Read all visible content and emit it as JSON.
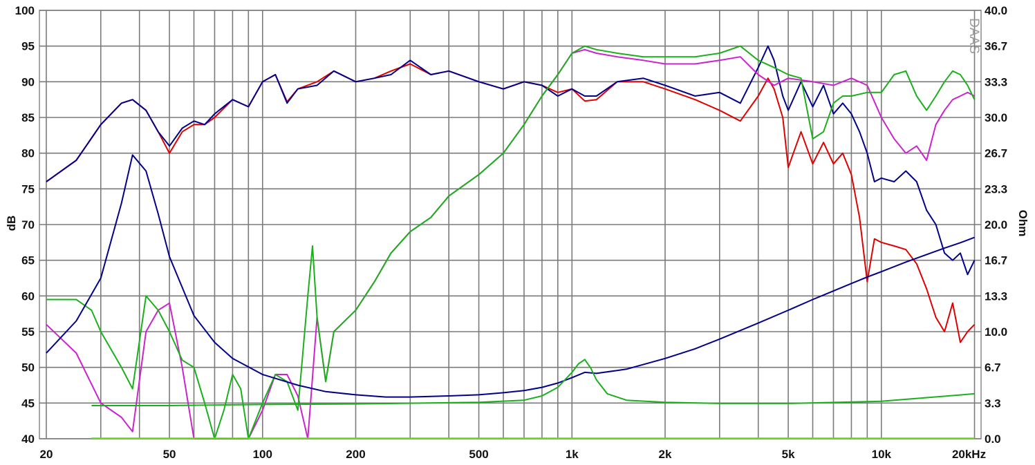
{
  "chart_data": {
    "type": "line",
    "title": "",
    "xlabel": "",
    "ylabel_left": "dB",
    "ylabel_right": "Ohm",
    "x_scale": "log",
    "xlim": [
      19,
      21000
    ],
    "ylim_left": [
      40,
      100
    ],
    "ylim_right": [
      0,
      40
    ],
    "grid": true,
    "watermark": "DAAS",
    "y_left_ticks": [
      "100",
      "95",
      "90",
      "85",
      "80",
      "75",
      "70",
      "65",
      "60",
      "55",
      "50",
      "45",
      "40"
    ],
    "y_right_ticks": [
      "40.0",
      "36.7",
      "33.3",
      "30.0",
      "26.7",
      "23.3",
      "20.0",
      "16.7",
      "13.3",
      "10.0",
      "6.7",
      "3.3",
      "0.0"
    ],
    "x_ticks": [
      {
        "label": "20",
        "value": 20
      },
      {
        "label": "50",
        "value": 50
      },
      {
        "label": "100",
        "value": 100
      },
      {
        "label": "200",
        "value": 200
      },
      {
        "label": "500",
        "value": 500
      },
      {
        "label": "1k",
        "value": 1000
      },
      {
        "label": "2k",
        "value": 2000
      },
      {
        "label": "5k",
        "value": 5000
      },
      {
        "label": "10k",
        "value": 10000
      },
      {
        "label": "20kHz",
        "value": 20000
      }
    ],
    "x_gridlines": [
      20,
      30,
      40,
      50,
      60,
      70,
      80,
      90,
      100,
      200,
      300,
      400,
      500,
      600,
      700,
      800,
      900,
      1000,
      2000,
      3000,
      4000,
      5000,
      6000,
      7000,
      8000,
      9000,
      10000,
      20000
    ],
    "series": [
      {
        "color": "#e00000",
        "axis": "left",
        "x": [
          20,
          25,
          30,
          35,
          38,
          42,
          46,
          50,
          55,
          60,
          65,
          70,
          80,
          90,
          100,
          110,
          120,
          130,
          150,
          170,
          200,
          230,
          260,
          300,
          350,
          400,
          500,
          600,
          700,
          800,
          900,
          1000,
          1100,
          1200,
          1400,
          1700,
          2000,
          2500,
          3000,
          3500,
          4000,
          4300,
          4500,
          4800,
          5000,
          5500,
          6000,
          6500,
          7000,
          7500,
          8000,
          8500,
          9000,
          9500,
          10000,
          11000,
          12000,
          13000,
          14000,
          15000,
          16000,
          17000,
          18000,
          19000,
          20000
        ],
        "values": [
          76,
          79,
          84,
          87,
          87.5,
          86,
          83,
          80,
          83,
          84,
          84,
          85,
          87.5,
          86.5,
          90,
          91,
          87.2,
          89,
          90,
          91.5,
          90,
          90.5,
          91.5,
          92.5,
          91,
          91.5,
          90,
          89,
          90,
          89.5,
          88.5,
          89,
          87.3,
          87.5,
          90,
          90,
          89,
          87.5,
          86,
          84.5,
          88,
          90.5,
          89,
          85,
          78,
          83,
          78.5,
          81.5,
          78.5,
          80,
          77,
          71,
          62,
          68,
          67.5,
          67,
          66.5,
          64.5,
          61,
          57,
          55,
          59,
          53.5,
          55,
          56
        ]
      },
      {
        "color": "#00008b",
        "axis": "left",
        "x": [
          20,
          25,
          30,
          35,
          38,
          42,
          46,
          50,
          55,
          60,
          65,
          70,
          80,
          90,
          100,
          110,
          120,
          130,
          150,
          170,
          200,
          230,
          260,
          300,
          350,
          400,
          500,
          600,
          700,
          800,
          900,
          1000,
          1100,
          1200,
          1400,
          1700,
          2000,
          2500,
          3000,
          3500,
          4000,
          4300,
          4500,
          4800,
          5000,
          5500,
          6000,
          6500,
          7000,
          7500,
          8000,
          8500,
          9000,
          9500,
          10000,
          11000,
          12000,
          13000,
          14000,
          15000,
          16000,
          17000,
          18000,
          19000,
          20000
        ],
        "values": [
          76,
          79,
          84,
          87,
          87.5,
          86,
          83,
          81,
          83.5,
          84.5,
          84,
          85.5,
          87.5,
          86.5,
          90,
          91,
          87,
          89,
          89.5,
          91.5,
          90,
          90.5,
          91,
          93,
          91,
          91.5,
          90,
          89,
          90,
          89.5,
          88,
          89,
          88,
          88,
          90,
          90.5,
          89.5,
          88,
          88.5,
          87,
          92,
          95,
          93,
          88,
          86,
          90,
          86.5,
          89.5,
          85.5,
          87,
          85.5,
          83,
          80,
          76,
          76.5,
          76,
          77.5,
          76,
          72,
          70,
          66,
          65,
          66,
          63,
          65
        ]
      },
      {
        "color": "#cc22cc",
        "axis": "left",
        "x": [
          20,
          25,
          30,
          35,
          38,
          42,
          46,
          50,
          55,
          60,
          65,
          70,
          80,
          85,
          90,
          100,
          110,
          120,
          130,
          140,
          150,
          160,
          170,
          200,
          230,
          260,
          300,
          350,
          400,
          500,
          600,
          700,
          800,
          900,
          1000,
          1100,
          1200,
          1400,
          1700,
          2000,
          2500,
          3000,
          3500,
          4000,
          4500,
          5000,
          6000,
          7000,
          8000,
          9000,
          10000,
          11000,
          12000,
          13000,
          14000,
          15000,
          16000,
          17000,
          18000,
          19000,
          20000
        ],
        "values": [
          56,
          52,
          45,
          43,
          41,
          55,
          58,
          59,
          50,
          40,
          36,
          35,
          38,
          35,
          35,
          44,
          49,
          49,
          46,
          40,
          57,
          48,
          55,
          58,
          62,
          66,
          69,
          71,
          74,
          77,
          80,
          84,
          88,
          91,
          94,
          94.5,
          94,
          93.5,
          93,
          92.5,
          92.5,
          93,
          93.5,
          91,
          89.5,
          90.5,
          90,
          89.5,
          90.5,
          89.5,
          85,
          82,
          80,
          81,
          79,
          84,
          86,
          87.5,
          88,
          88.5,
          88
        ]
      },
      {
        "color": "#1ab01a",
        "axis": "left",
        "x": [
          20,
          25,
          28,
          30,
          35,
          38,
          42,
          46,
          50,
          55,
          60,
          65,
          70,
          75,
          80,
          85,
          90,
          100,
          110,
          120,
          130,
          140,
          145,
          150,
          160,
          170,
          200,
          230,
          260,
          300,
          350,
          400,
          500,
          600,
          700,
          800,
          900,
          1000,
          1100,
          1200,
          1400,
          1700,
          2000,
          2500,
          3000,
          3500,
          4000,
          4500,
          5000,
          5500,
          6000,
          6500,
          7000,
          7500,
          8000,
          9000,
          10000,
          11000,
          12000,
          13000,
          14000,
          15000,
          16000,
          17000,
          18000,
          19000,
          20000
        ],
        "values": [
          59.5,
          59.5,
          58,
          55,
          50,
          47,
          60,
          58,
          55,
          51,
          50,
          45,
          40,
          44,
          49,
          47,
          40,
          45,
          49,
          48,
          44,
          60,
          67,
          57,
          48,
          55,
          58,
          62,
          66,
          69,
          71,
          74,
          77,
          80,
          84,
          88,
          91,
          94,
          95,
          94.5,
          94,
          93.5,
          93.5,
          93.5,
          94,
          95,
          93,
          92,
          91,
          90.5,
          82,
          83,
          87,
          88,
          88,
          88.5,
          88.5,
          91,
          91.5,
          88,
          86,
          88,
          90,
          91.5,
          91,
          89.5,
          87.5
        ]
      },
      {
        "color": "#00008b",
        "axis": "right",
        "x": [
          20,
          25,
          30,
          35,
          38,
          42,
          46,
          50,
          60,
          70,
          80,
          100,
          130,
          160,
          200,
          250,
          300,
          400,
          500,
          600,
          700,
          800,
          900,
          1000,
          1100,
          1200,
          1500,
          2000,
          2500,
          3000,
          4000,
          5000,
          6000,
          7000,
          8000,
          9000,
          10000,
          12000,
          14000,
          16000,
          18000,
          20000
        ],
        "values": [
          8,
          11,
          15,
          22,
          26.5,
          25,
          21,
          17,
          11.5,
          9,
          7.5,
          6,
          5,
          4.4,
          4.1,
          3.9,
          3.9,
          4.0,
          4.1,
          4.3,
          4.5,
          4.8,
          5.2,
          5.7,
          6.2,
          6.1,
          6.5,
          7.5,
          8.4,
          9.3,
          10.8,
          12.0,
          13.0,
          13.8,
          14.5,
          15.1,
          15.6,
          16.5,
          17.2,
          17.8,
          18.3,
          18.8
        ]
      },
      {
        "color": "#1ab01a",
        "axis": "right",
        "x": [
          28,
          50,
          100,
          200,
          500,
          700,
          800,
          900,
          1000,
          1050,
          1100,
          1150,
          1200,
          1300,
          1500,
          2000,
          3000,
          5000,
          10000,
          20000
        ],
        "values": [
          3.1,
          3.1,
          3.2,
          3.25,
          3.4,
          3.6,
          4.0,
          4.8,
          6.2,
          7.0,
          7.4,
          6.6,
          5.5,
          4.2,
          3.6,
          3.4,
          3.3,
          3.3,
          3.5,
          4.2
        ]
      },
      {
        "color": "#66dd22",
        "axis": "right",
        "x": [
          28,
          20000
        ],
        "values": [
          0.05,
          0.05
        ]
      }
    ]
  }
}
